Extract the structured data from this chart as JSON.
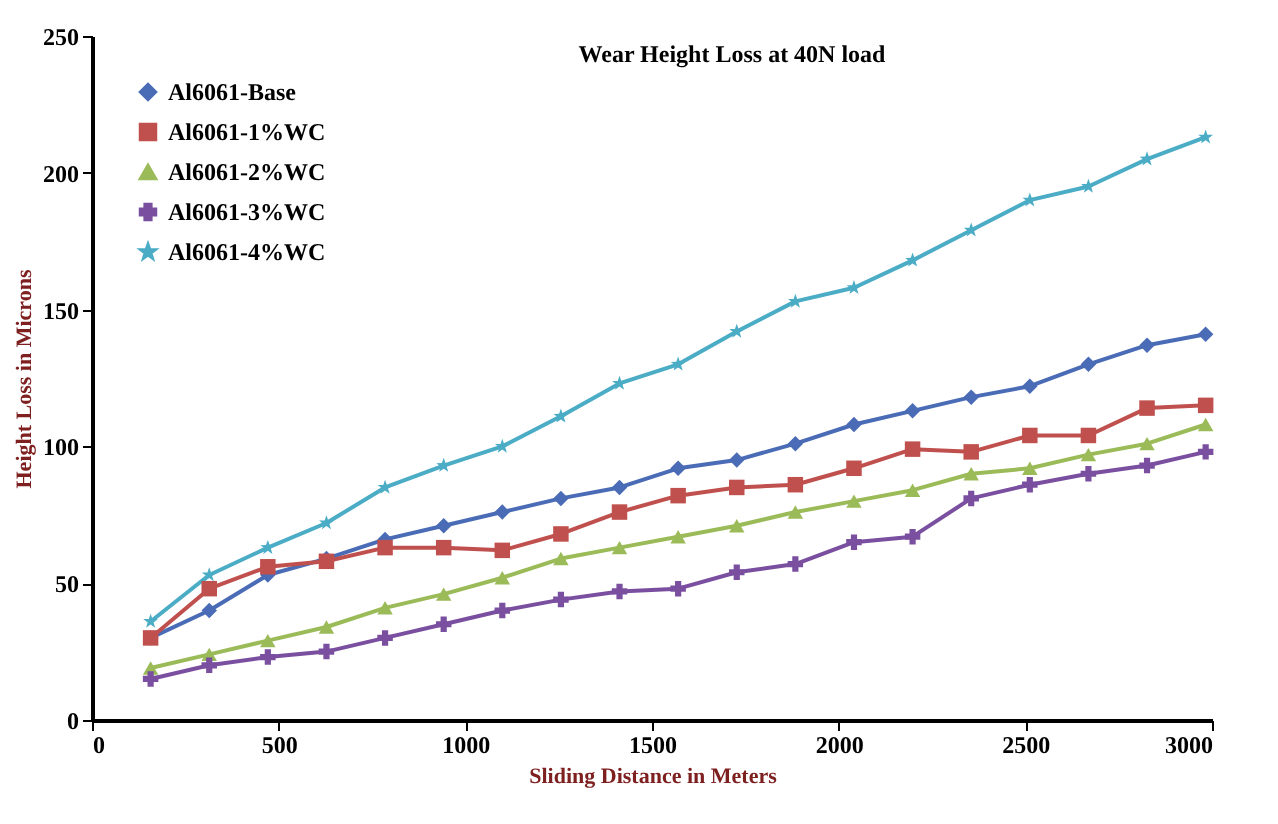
{
  "chart_data": {
    "type": "line",
    "title": "Wear Height Loss at 40N load",
    "xlabel": "Sliding Distance in Meters",
    "ylabel": "Height Loss in Microns",
    "x": [
      157,
      314,
      471,
      628,
      785,
      942,
      1099,
      1256,
      1413,
      1570,
      1727,
      1884,
      2041,
      2198,
      2355,
      2512,
      2669,
      2826,
      2983
    ],
    "series": [
      {
        "name": "Al6061-Base",
        "color": "#4a6bb5",
        "marker": "diamond",
        "values": [
          30,
          40,
          53,
          59,
          66,
          71,
          76,
          81,
          85,
          92,
          95,
          101,
          108,
          113,
          118,
          122,
          130,
          137,
          141
        ]
      },
      {
        "name": "Al6061-1%WC",
        "color": "#c0504d",
        "marker": "square",
        "values": [
          30,
          48,
          56,
          58,
          63,
          63,
          62,
          68,
          76,
          82,
          85,
          86,
          92,
          99,
          98,
          104,
          104,
          114,
          115
        ]
      },
      {
        "name": "Al6061-2%WC",
        "color": "#9bbb59",
        "marker": "triangle",
        "values": [
          19,
          24,
          29,
          34,
          41,
          46,
          52,
          59,
          63,
          67,
          71,
          76,
          80,
          84,
          90,
          92,
          97,
          101,
          108
        ]
      },
      {
        "name": "Al6061-3%WC",
        "color": "#7a4fa0",
        "marker": "cross",
        "values": [
          15,
          20,
          23,
          25,
          30,
          35,
          40,
          44,
          47,
          48,
          54,
          57,
          65,
          67,
          81,
          86,
          90,
          93,
          98
        ]
      },
      {
        "name": "Al6061-4%WC",
        "color": "#4bacc6",
        "marker": "star",
        "values": [
          36,
          53,
          63,
          72,
          85,
          93,
          100,
          111,
          123,
          130,
          142,
          153,
          158,
          168,
          179,
          190,
          195,
          205,
          213
        ]
      }
    ],
    "xlim": [
      0,
      3000
    ],
    "xticks": [
      0,
      500,
      1000,
      1500,
      2000,
      2500,
      3000
    ],
    "ylim": [
      0,
      250
    ],
    "yticks": [
      0,
      50,
      100,
      150,
      200,
      250
    ],
    "legend": "top left",
    "grid": false
  }
}
